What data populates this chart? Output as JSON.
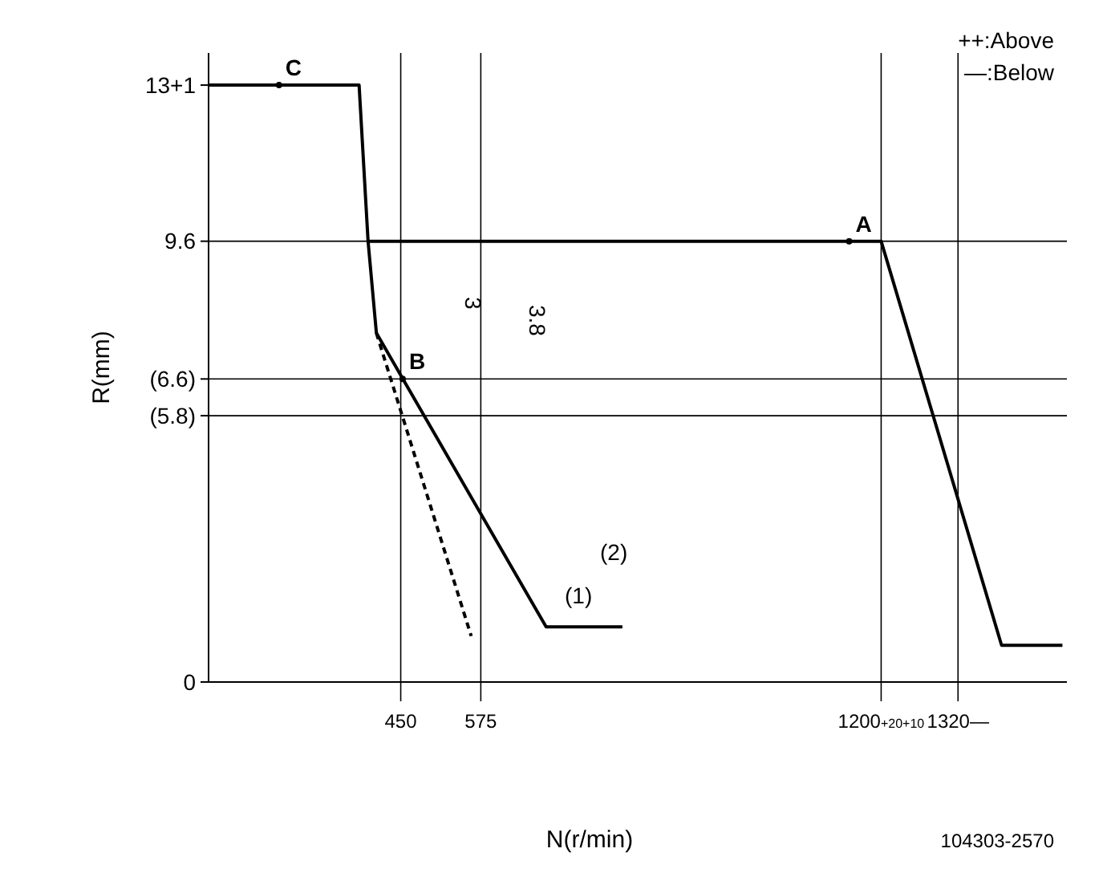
{
  "chart_data": {
    "type": "line",
    "xlabel": "N(r/min)",
    "ylabel": "R(mm)",
    "xlim": [
      150,
      1490
    ],
    "ylim": [
      0,
      13.7
    ],
    "xticks": [
      450,
      575,
      {
        "value": 1200,
        "label": "1200+20+10"
      },
      {
        "value": 1320,
        "label": "1320—"
      }
    ],
    "yticks": [
      0,
      {
        "value": 5.8,
        "label": "(5.8)"
      },
      {
        "value": 6.6,
        "label": "(6.6)"
      },
      9.6,
      {
        "value": 13,
        "label": "13+1"
      }
    ],
    "series": [
      {
        "color": "#000000",
        "x": [
          151,
          385,
          399,
          1200,
          1388,
          1483
        ],
        "values": [
          13,
          13,
          9.6,
          9.6,
          0.8,
          0.8
        ]
      },
      {
        "color": "#000000",
        "x": [
          399,
          412,
          677,
          796
        ],
        "values": [
          9.6,
          7.6,
          1.2,
          1.2
        ]
      },
      {
        "color": "#000000",
        "line_style": "dashed",
        "x": [
          412,
          560
        ],
        "values": [
          7.6,
          1.0
        ]
      },
      {
        "type": "scatter",
        "color": "#000000",
        "marker": "circle",
        "x": [
          260,
          453,
          1150
        ],
        "values": [
          13,
          6.6,
          9.6
        ]
      }
    ],
    "ref_lines": [
      {
        "axis": "y",
        "value": 9.6
      },
      {
        "axis": "y",
        "value": 6.6
      },
      {
        "axis": "y",
        "value": 5.8
      },
      {
        "axis": "x",
        "value": 450
      },
      {
        "axis": "x",
        "value": 575
      },
      {
        "axis": "x",
        "value": 1200
      },
      {
        "axis": "x",
        "value": 1320
      }
    ],
    "annotations": [
      "++:Above",
      "—:Below",
      "3",
      "3.8",
      "(1)",
      "(2)",
      "104303-2570",
      {
        "text": "C",
        "x": 260,
        "y": 13
      },
      {
        "text": "B",
        "x": 453,
        "y": 6.6
      },
      {
        "text": "A",
        "x": 1150,
        "y": 9.6
      }
    ],
    "grid": false
  }
}
